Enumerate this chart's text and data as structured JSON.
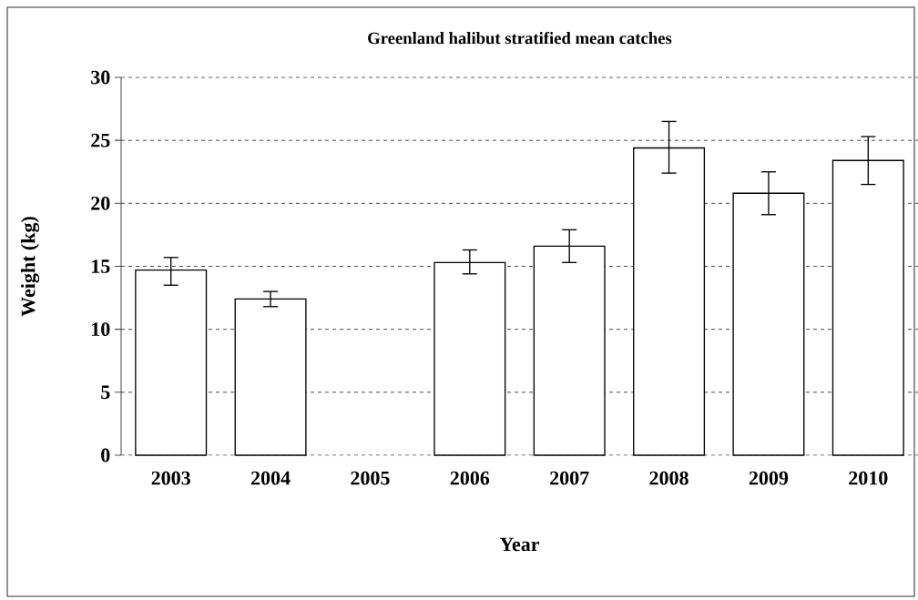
{
  "chart_data": {
    "type": "bar",
    "title": "Greenland halibut stratified mean catches",
    "xlabel": "Year",
    "ylabel": "Weight (kg)",
    "categories": [
      "2003",
      "2004",
      "2005",
      "2006",
      "2007",
      "2008",
      "2009",
      "2010"
    ],
    "values": [
      14.7,
      12.4,
      null,
      15.3,
      16.6,
      24.4,
      20.8,
      23.4
    ],
    "errors": [
      [
        13.5,
        15.7
      ],
      [
        11.8,
        13.0
      ],
      null,
      [
        14.4,
        16.3
      ],
      [
        15.3,
        17.9
      ],
      [
        22.4,
        26.5
      ],
      [
        19.1,
        22.5
      ],
      [
        21.5,
        25.3
      ]
    ],
    "color": "#ffffff",
    "ylim": [
      0,
      30
    ],
    "yticks": [
      0,
      5,
      10,
      15,
      20,
      25,
      30
    ],
    "grid": "y"
  }
}
